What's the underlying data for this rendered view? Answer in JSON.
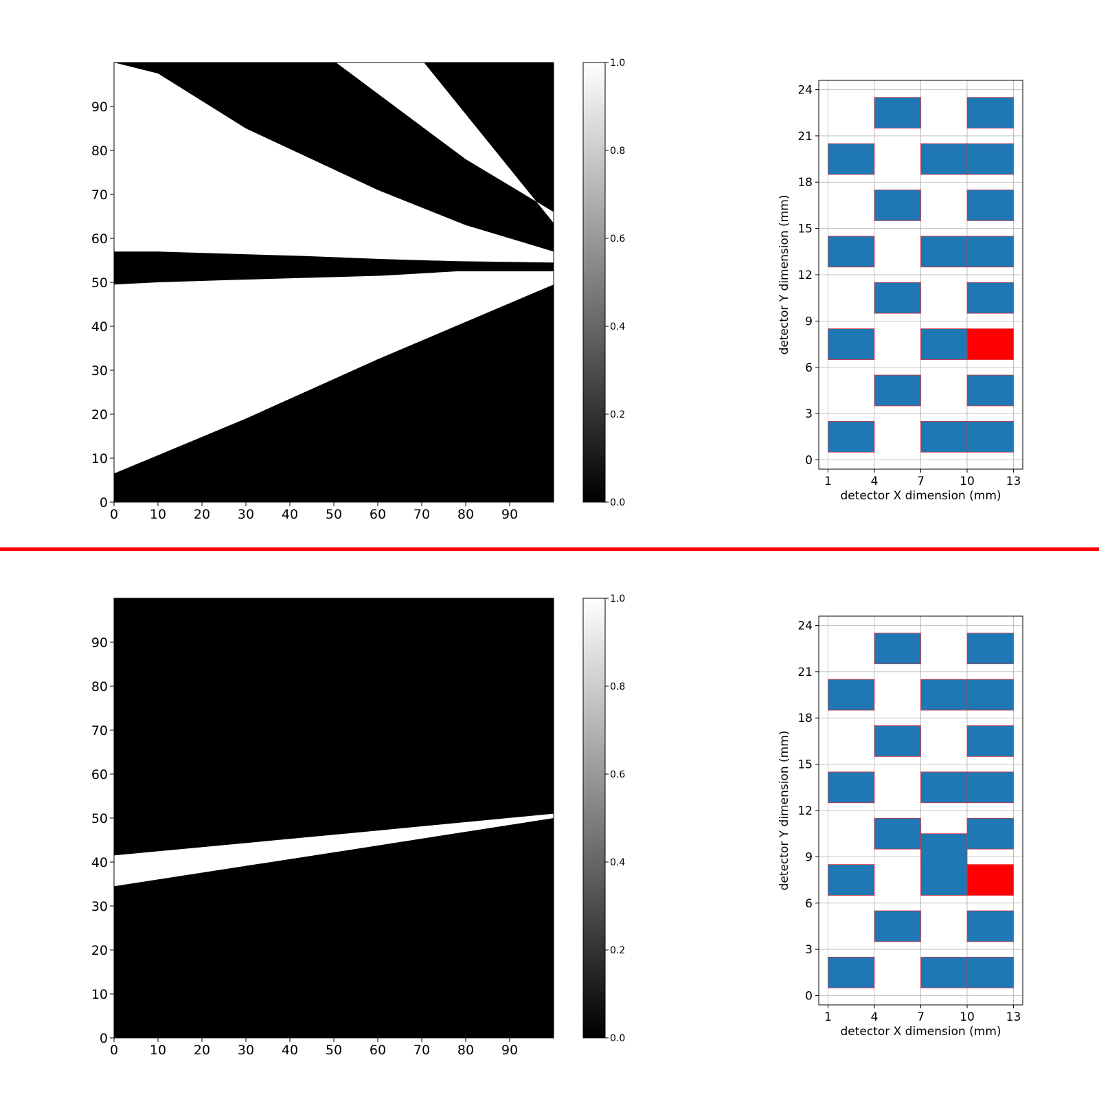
{
  "divider_color": "#ff0000",
  "chart_data": [
    {
      "id": "top-image",
      "type": "heatmap",
      "colormap": "gray",
      "xlim": [
        0,
        100
      ],
      "ylim": [
        0,
        100
      ],
      "x_ticks": [
        0,
        10,
        20,
        30,
        40,
        50,
        60,
        70,
        80,
        90
      ],
      "y_ticks": [
        0,
        10,
        20,
        30,
        40,
        50,
        60,
        70,
        80,
        90
      ],
      "colorbar": {
        "range": [
          0.0,
          1.0
        ],
        "ticks": [
          "0.0",
          "0.2",
          "0.4",
          "0.6",
          "0.8",
          "1.0"
        ]
      },
      "white_regions": [
        {
          "upper": [
            [
              0,
              100
            ],
            [
              10,
              97.5
            ],
            [
              30,
              85
            ],
            [
              60,
              71
            ],
            [
              80,
              63
            ],
            [
              100,
              57
            ]
          ],
          "lower": [
            [
              0,
              57
            ],
            [
              10,
              57
            ],
            [
              26,
              56.5
            ],
            [
              43,
              56
            ],
            [
              61,
              55.3
            ],
            [
              78,
              54.8
            ],
            [
              100,
              54.5
            ]
          ]
        },
        {
          "upper": [
            [
              0,
              49.5
            ],
            [
              10,
              50
            ],
            [
              26,
              50.5
            ],
            [
              43,
              51
            ],
            [
              61,
              51.5
            ],
            [
              78,
              52.5
            ],
            [
              100,
              52.5
            ]
          ],
          "lower": [
            [
              0,
              6.5
            ],
            [
              30,
              19
            ],
            [
              60,
              32.5
            ],
            [
              100,
              49.5
            ]
          ]
        },
        {
          "upper": [
            [
              50.5,
              100
            ],
            [
              70.5,
              100
            ],
            [
              100,
              63.5
            ]
          ],
          "lower": [
            [
              50.5,
              100
            ],
            [
              80,
              78
            ],
            [
              100,
              66
            ]
          ]
        }
      ]
    },
    {
      "id": "top-detector",
      "type": "heatmap",
      "xlabel": "detector X dimension (mm)",
      "ylabel": "detector Y dimension (mm)",
      "xlim": [
        0.4,
        13.6
      ],
      "ylim": [
        -0.6,
        24.6
      ],
      "x_ticks": [
        1,
        4,
        7,
        10,
        13
      ],
      "y_ticks": [
        0,
        3,
        6,
        9,
        12,
        15,
        18,
        21,
        24
      ],
      "grid": true,
      "cells": [
        {
          "x": [
            1,
            4
          ],
          "y": [
            0.5,
            2.5
          ],
          "color": "#1f77b4"
        },
        {
          "x": [
            7,
            10
          ],
          "y": [
            0.5,
            2.5
          ],
          "color": "#1f77b4"
        },
        {
          "x": [
            10,
            13
          ],
          "y": [
            0.5,
            2.5
          ],
          "color": "#1f77b4"
        },
        {
          "x": [
            4,
            7
          ],
          "y": [
            3.5,
            5.5
          ],
          "color": "#1f77b4"
        },
        {
          "x": [
            10,
            13
          ],
          "y": [
            3.5,
            5.5
          ],
          "color": "#1f77b4"
        },
        {
          "x": [
            1,
            4
          ],
          "y": [
            6.5,
            8.5
          ],
          "color": "#1f77b4"
        },
        {
          "x": [
            7,
            10
          ],
          "y": [
            6.5,
            8.5
          ],
          "color": "#1f77b4"
        },
        {
          "x": [
            10,
            13
          ],
          "y": [
            6.5,
            8.5
          ],
          "color": "#ff0000"
        },
        {
          "x": [
            4,
            7
          ],
          "y": [
            9.5,
            11.5
          ],
          "color": "#1f77b4"
        },
        {
          "x": [
            10,
            13
          ],
          "y": [
            9.5,
            11.5
          ],
          "color": "#1f77b4"
        },
        {
          "x": [
            1,
            4
          ],
          "y": [
            12.5,
            14.5
          ],
          "color": "#1f77b4"
        },
        {
          "x": [
            7,
            10
          ],
          "y": [
            12.5,
            14.5
          ],
          "color": "#1f77b4"
        },
        {
          "x": [
            10,
            13
          ],
          "y": [
            12.5,
            14.5
          ],
          "color": "#1f77b4"
        },
        {
          "x": [
            4,
            7
          ],
          "y": [
            15.5,
            17.5
          ],
          "color": "#1f77b4"
        },
        {
          "x": [
            10,
            13
          ],
          "y": [
            15.5,
            17.5
          ],
          "color": "#1f77b4"
        },
        {
          "x": [
            1,
            4
          ],
          "y": [
            18.5,
            20.5
          ],
          "color": "#1f77b4"
        },
        {
          "x": [
            7,
            10
          ],
          "y": [
            18.5,
            20.5
          ],
          "color": "#1f77b4"
        },
        {
          "x": [
            10,
            13
          ],
          "y": [
            18.5,
            20.5
          ],
          "color": "#1f77b4"
        },
        {
          "x": [
            4,
            7
          ],
          "y": [
            21.5,
            23.5
          ],
          "color": "#1f77b4"
        },
        {
          "x": [
            10,
            13
          ],
          "y": [
            21.5,
            23.5
          ],
          "color": "#1f77b4"
        }
      ]
    },
    {
      "id": "bottom-image",
      "type": "heatmap",
      "colormap": "gray",
      "xlim": [
        0,
        100
      ],
      "ylim": [
        0,
        100
      ],
      "x_ticks": [
        0,
        10,
        20,
        30,
        40,
        50,
        60,
        70,
        80,
        90
      ],
      "y_ticks": [
        0,
        10,
        20,
        30,
        40,
        50,
        60,
        70,
        80,
        90
      ],
      "colorbar": {
        "range": [
          0.0,
          1.0
        ],
        "ticks": [
          "0.0",
          "0.2",
          "0.4",
          "0.6",
          "0.8",
          "1.0"
        ]
      },
      "white_regions": [
        {
          "upper": [
            [
              0,
              41.5
            ],
            [
              50,
              46.2
            ],
            [
              100,
              51
            ]
          ],
          "lower": [
            [
              0,
              34.5
            ],
            [
              50,
              42.2
            ],
            [
              100,
              50
            ]
          ]
        }
      ]
    },
    {
      "id": "bottom-detector",
      "type": "heatmap",
      "xlabel": "detector X dimension (mm)",
      "ylabel": "detector Y dimension (mm)",
      "xlim": [
        0.4,
        13.6
      ],
      "ylim": [
        -0.6,
        24.6
      ],
      "x_ticks": [
        1,
        4,
        7,
        10,
        13
      ],
      "y_ticks": [
        0,
        3,
        6,
        9,
        12,
        15,
        18,
        21,
        24
      ],
      "grid": true,
      "cells": [
        {
          "x": [
            1,
            4
          ],
          "y": [
            0.5,
            2.5
          ],
          "color": "#1f77b4"
        },
        {
          "x": [
            7,
            10
          ],
          "y": [
            0.5,
            2.5
          ],
          "color": "#1f77b4"
        },
        {
          "x": [
            10,
            13
          ],
          "y": [
            0.5,
            2.5
          ],
          "color": "#1f77b4"
        },
        {
          "x": [
            4,
            7
          ],
          "y": [
            3.5,
            5.5
          ],
          "color": "#1f77b4"
        },
        {
          "x": [
            10,
            13
          ],
          "y": [
            3.5,
            5.5
          ],
          "color": "#1f77b4"
        },
        {
          "x": [
            1,
            4
          ],
          "y": [
            6.5,
            8.5
          ],
          "color": "#1f77b4"
        },
        {
          "x": [
            7,
            10
          ],
          "y": [
            6.5,
            10.5
          ],
          "color": "#1f77b4"
        },
        {
          "x": [
            10,
            13
          ],
          "y": [
            6.5,
            8.5
          ],
          "color": "#ff0000"
        },
        {
          "x": [
            4,
            7
          ],
          "y": [
            9.5,
            11.5
          ],
          "color": "#1f77b4"
        },
        {
          "x": [
            10,
            13
          ],
          "y": [
            9.5,
            11.5
          ],
          "color": "#1f77b4"
        },
        {
          "x": [
            1,
            4
          ],
          "y": [
            12.5,
            14.5
          ],
          "color": "#1f77b4"
        },
        {
          "x": [
            7,
            10
          ],
          "y": [
            12.5,
            14.5
          ],
          "color": "#1f77b4"
        },
        {
          "x": [
            10,
            13
          ],
          "y": [
            12.5,
            14.5
          ],
          "color": "#1f77b4"
        },
        {
          "x": [
            4,
            7
          ],
          "y": [
            15.5,
            17.5
          ],
          "color": "#1f77b4"
        },
        {
          "x": [
            10,
            13
          ],
          "y": [
            15.5,
            17.5
          ],
          "color": "#1f77b4"
        },
        {
          "x": [
            1,
            4
          ],
          "y": [
            18.5,
            20.5
          ],
          "color": "#1f77b4"
        },
        {
          "x": [
            7,
            10
          ],
          "y": [
            18.5,
            20.5
          ],
          "color": "#1f77b4"
        },
        {
          "x": [
            10,
            13
          ],
          "y": [
            18.5,
            20.5
          ],
          "color": "#1f77b4"
        },
        {
          "x": [
            4,
            7
          ],
          "y": [
            21.5,
            23.5
          ],
          "color": "#1f77b4"
        },
        {
          "x": [
            10,
            13
          ],
          "y": [
            21.5,
            23.5
          ],
          "color": "#1f77b4"
        }
      ]
    }
  ]
}
